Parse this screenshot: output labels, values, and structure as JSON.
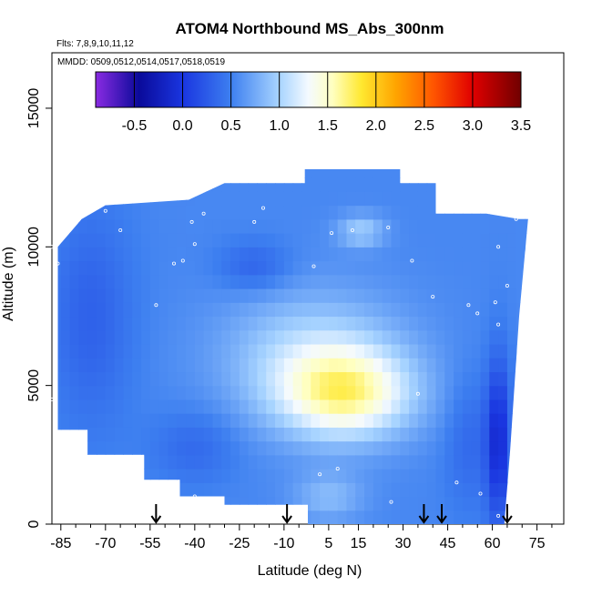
{
  "chart_data": {
    "type": "heatmap",
    "title": "ATOM4 Northbound MS_Abs_300nm",
    "flights_note": "Flts: 7,8,9,10,11,12",
    "dates_note": "MMDD: 0509,0512,0514,0517,0518,0519",
    "xlabel": "Latitude (deg N)",
    "ylabel": "Altitude (m)",
    "xlim": [
      -88,
      84
    ],
    "ylim": [
      0,
      17000
    ],
    "x_ticks": [
      -85,
      -70,
      -55,
      -40,
      -25,
      -10,
      5,
      15,
      30,
      45,
      60,
      75
    ],
    "x_minor_ticks": [
      -80,
      -75,
      -65,
      -60,
      -50,
      -45,
      -35,
      -30,
      -20,
      -15,
      -5,
      0,
      10,
      20,
      25,
      35,
      40,
      50,
      55,
      65,
      70,
      80
    ],
    "y_ticks": [
      0,
      5000,
      10000,
      15000
    ],
    "colorbar": {
      "min": -0.9,
      "max": 3.5,
      "ticks": [
        "-0.5",
        "0.0",
        "0.5",
        "1.0",
        "1.5",
        "2.0",
        "2.5",
        "3.0",
        "3.5"
      ],
      "stops": [
        {
          "v": -0.9,
          "c": "#8a2be2"
        },
        {
          "v": -0.45,
          "c": "#0a0a9a"
        },
        {
          "v": 0.0,
          "c": "#1a36e0"
        },
        {
          "v": 0.5,
          "c": "#3d7ff0"
        },
        {
          "v": 1.0,
          "c": "#a8d4ff"
        },
        {
          "v": 1.3,
          "c": "#f4faff"
        },
        {
          "v": 1.55,
          "c": "#ffffc0"
        },
        {
          "v": 1.85,
          "c": "#ffe830"
        },
        {
          "v": 2.2,
          "c": "#ffa500"
        },
        {
          "v": 2.6,
          "c": "#ff5500"
        },
        {
          "v": 3.0,
          "c": "#e00000"
        },
        {
          "v": 3.5,
          "c": "#700000"
        }
      ]
    },
    "envelope": [
      [
        -86,
        4300
      ],
      [
        -86,
        10000
      ],
      [
        -78,
        11000
      ],
      [
        -70,
        11500
      ],
      [
        -42,
        11700
      ],
      [
        -30,
        12300
      ],
      [
        -3,
        12300
      ],
      [
        -3,
        12800
      ],
      [
        29,
        12800
      ],
      [
        29,
        12300
      ],
      [
        41,
        12300
      ],
      [
        41,
        11200
      ],
      [
        58,
        11200
      ],
      [
        69,
        11000
      ],
      [
        72,
        11000
      ],
      [
        69,
        7500
      ],
      [
        66,
        2700
      ],
      [
        64,
        0
      ],
      [
        -2,
        0
      ],
      [
        -2,
        700
      ],
      [
        -30,
        700
      ],
      [
        -30,
        1000
      ],
      [
        -45,
        1000
      ],
      [
        -45,
        1600
      ],
      [
        -57,
        1600
      ],
      [
        -57,
        2500
      ],
      [
        -76,
        2500
      ],
      [
        -76,
        3400
      ],
      [
        -86,
        3400
      ]
    ],
    "field": [
      {
        "lat": 11,
        "alt": 4700,
        "v": 1.45,
        "rx": 22,
        "ry": 1600
      },
      {
        "lat": 0,
        "alt": 6000,
        "v": 1.05,
        "rx": 30,
        "ry": 2400
      },
      {
        "lat": 16,
        "alt": 10600,
        "v": 0.95,
        "rx": 8,
        "ry": 600
      },
      {
        "lat": 5,
        "alt": 1000,
        "v": 0.85,
        "rx": 12,
        "ry": 900
      },
      {
        "lat": -40,
        "alt": 2800,
        "v": 0.35,
        "rx": 14,
        "ry": 1300
      },
      {
        "lat": -75,
        "alt": 7500,
        "v": 0.3,
        "rx": 14,
        "ry": 4000
      },
      {
        "lat": -20,
        "alt": 9300,
        "v": 0.3,
        "rx": 12,
        "ry": 900
      },
      {
        "lat": 62,
        "alt": 3000,
        "v": -0.1,
        "rx": 4,
        "ry": 3000
      },
      {
        "lat": 52,
        "alt": 3000,
        "v": 0.35,
        "rx": 8,
        "ry": 2500
      }
    ],
    "base_value": 0.55,
    "samples": [
      [
        -88,
        4500
      ],
      [
        -88,
        10000
      ],
      [
        -86,
        9400
      ],
      [
        -70,
        11300
      ],
      [
        -65,
        10600
      ],
      [
        -53,
        7900
      ],
      [
        -47,
        9400
      ],
      [
        -44,
        9500
      ],
      [
        -41,
        10900
      ],
      [
        -40,
        1000
      ],
      [
        -40,
        10100
      ],
      [
        -37,
        11200
      ],
      [
        -17,
        11400
      ],
      [
        -20,
        10900
      ],
      [
        0,
        9300
      ],
      [
        2,
        1800
      ],
      [
        6,
        10500
      ],
      [
        13,
        10600
      ],
      [
        8,
        2000
      ],
      [
        25,
        10700
      ],
      [
        26,
        800
      ],
      [
        33,
        9500
      ],
      [
        35,
        4700
      ],
      [
        40,
        8200
      ],
      [
        48,
        1500
      ],
      [
        52,
        7900
      ],
      [
        55,
        7600
      ],
      [
        56,
        1100
      ],
      [
        62,
        7200
      ],
      [
        61,
        8000
      ],
      [
        62,
        10000
      ],
      [
        68,
        11000
      ],
      [
        65,
        8600
      ],
      [
        62,
        300
      ]
    ],
    "flight_markers": [
      -53,
      -9,
      37,
      43,
      65
    ]
  }
}
